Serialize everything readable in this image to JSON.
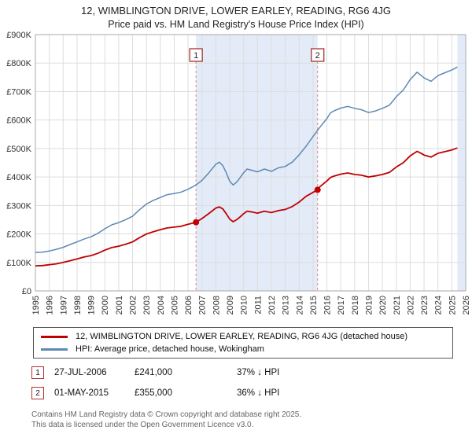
{
  "header": {
    "title": "12, WIMBLINGTON DRIVE, LOWER EARLEY, READING, RG6 4JG",
    "subtitle": "Price paid vs. HM Land Registry's House Price Index (HPI)"
  },
  "chart_data": {
    "type": "line",
    "title": "12, WIMBLINGTON DRIVE, LOWER EARLEY, READING, RG6 4JG",
    "subtitle": "Price paid vs. HM Land Registry's House Price Index (HPI)",
    "x_range": [
      1995,
      2026
    ],
    "y_range_thousands": [
      0,
      900
    ],
    "units": "GBP thousands",
    "grid": true,
    "legend_position": "bottom",
    "x_tick_labels": [
      "1995",
      "1996",
      "1997",
      "1998",
      "1999",
      "2000",
      "2001",
      "2002",
      "2003",
      "2004",
      "2005",
      "2006",
      "2007",
      "2008",
      "2009",
      "2010",
      "2011",
      "2012",
      "2013",
      "2014",
      "2015",
      "2016",
      "2017",
      "2018",
      "2019",
      "2020",
      "2021",
      "2022",
      "2023",
      "2024",
      "2025",
      "2026"
    ],
    "y_tick_labels": [
      "£0",
      "£100K",
      "£200K",
      "£300K",
      "£400K",
      "£500K",
      "£600K",
      "£700K",
      "£800K",
      "£900K"
    ],
    "colors": {
      "property": "#c00000",
      "hpi": "#5d89b4",
      "band": "#e3ebf8",
      "sale_dash": "#dd8888",
      "sale_box_border": "#aa3333",
      "grid": "#dddddd",
      "axis_border": "#aaaaaa"
    },
    "series": [
      {
        "name": "12, WIMBLINGTON DRIVE, LOWER EARLEY, READING, RG6 4JG (detached house)",
        "color_key": "property",
        "points": [
          [
            1995,
            88
          ],
          [
            1995.5,
            89
          ],
          [
            1996,
            92
          ],
          [
            1996.5,
            95
          ],
          [
            1997,
            100
          ],
          [
            1997.5,
            106
          ],
          [
            1998,
            112
          ],
          [
            1998.5,
            119
          ],
          [
            1999,
            124
          ],
          [
            1999.5,
            132
          ],
          [
            2000,
            143
          ],
          [
            2000.5,
            152
          ],
          [
            2001,
            157
          ],
          [
            2001.5,
            164
          ],
          [
            2002,
            172
          ],
          [
            2002.5,
            187
          ],
          [
            2003,
            200
          ],
          [
            2003.5,
            208
          ],
          [
            2004,
            215
          ],
          [
            2004.5,
            221
          ],
          [
            2005,
            224
          ],
          [
            2005.5,
            227
          ],
          [
            2006,
            234
          ],
          [
            2006.57,
            241
          ],
          [
            2007,
            254
          ],
          [
            2007.5,
            272
          ],
          [
            2008,
            291
          ],
          [
            2008.25,
            295
          ],
          [
            2008.5,
            288
          ],
          [
            2008.75,
            271
          ],
          [
            2009,
            252
          ],
          [
            2009.25,
            243
          ],
          [
            2009.5,
            250
          ],
          [
            2009.75,
            260
          ],
          [
            2010,
            271
          ],
          [
            2010.25,
            280
          ],
          [
            2010.5,
            278
          ],
          [
            2011,
            273
          ],
          [
            2011.5,
            280
          ],
          [
            2012,
            275
          ],
          [
            2012.5,
            282
          ],
          [
            2013,
            286
          ],
          [
            2013.5,
            296
          ],
          [
            2014,
            312
          ],
          [
            2014.5,
            332
          ],
          [
            2015,
            346
          ],
          [
            2015.33,
            355
          ],
          [
            2015.5,
            366
          ],
          [
            2016,
            386
          ],
          [
            2016.25,
            398
          ],
          [
            2016.5,
            403
          ],
          [
            2017,
            410
          ],
          [
            2017.5,
            414
          ],
          [
            2018,
            409
          ],
          [
            2018.5,
            406
          ],
          [
            2019,
            400
          ],
          [
            2019.5,
            404
          ],
          [
            2020,
            409
          ],
          [
            2020.5,
            416
          ],
          [
            2021,
            435
          ],
          [
            2021.5,
            450
          ],
          [
            2022,
            474
          ],
          [
            2022.5,
            490
          ],
          [
            2022.75,
            484
          ],
          [
            2023,
            477
          ],
          [
            2023.5,
            470
          ],
          [
            2024,
            483
          ],
          [
            2024.5,
            489
          ],
          [
            2025,
            495
          ],
          [
            2025.4,
            502
          ]
        ]
      },
      {
        "name": "HPI: Average price, detached house, Wokingham",
        "color_key": "hpi",
        "points": [
          [
            1995,
            135
          ],
          [
            1995.5,
            136
          ],
          [
            1996,
            140
          ],
          [
            1996.5,
            146
          ],
          [
            1997,
            153
          ],
          [
            1997.5,
            163
          ],
          [
            1998,
            172
          ],
          [
            1998.5,
            182
          ],
          [
            1999,
            190
          ],
          [
            1999.5,
            202
          ],
          [
            2000,
            218
          ],
          [
            2000.5,
            232
          ],
          [
            2001,
            240
          ],
          [
            2001.5,
            250
          ],
          [
            2002,
            262
          ],
          [
            2002.5,
            285
          ],
          [
            2003,
            305
          ],
          [
            2003.5,
            318
          ],
          [
            2004,
            328
          ],
          [
            2004.5,
            338
          ],
          [
            2005,
            342
          ],
          [
            2005.5,
            347
          ],
          [
            2006,
            357
          ],
          [
            2006.5,
            370
          ],
          [
            2007,
            388
          ],
          [
            2007.5,
            415
          ],
          [
            2008,
            445
          ],
          [
            2008.25,
            452
          ],
          [
            2008.5,
            440
          ],
          [
            2008.75,
            415
          ],
          [
            2009,
            385
          ],
          [
            2009.25,
            372
          ],
          [
            2009.5,
            382
          ],
          [
            2009.75,
            398
          ],
          [
            2010,
            415
          ],
          [
            2010.25,
            428
          ],
          [
            2010.5,
            425
          ],
          [
            2011,
            418
          ],
          [
            2011.5,
            428
          ],
          [
            2012,
            420
          ],
          [
            2012.5,
            432
          ],
          [
            2013,
            437
          ],
          [
            2013.5,
            452
          ],
          [
            2014,
            478
          ],
          [
            2014.5,
            508
          ],
          [
            2015,
            542
          ],
          [
            2015.5,
            575
          ],
          [
            2016,
            605
          ],
          [
            2016.25,
            625
          ],
          [
            2016.5,
            632
          ],
          [
            2017,
            642
          ],
          [
            2017.5,
            648
          ],
          [
            2018,
            641
          ],
          [
            2018.5,
            636
          ],
          [
            2019,
            626
          ],
          [
            2019.5,
            632
          ],
          [
            2020,
            641
          ],
          [
            2020.5,
            652
          ],
          [
            2021,
            682
          ],
          [
            2021.5,
            705
          ],
          [
            2022,
            742
          ],
          [
            2022.5,
            768
          ],
          [
            2022.75,
            758
          ],
          [
            2023,
            748
          ],
          [
            2023.5,
            736
          ],
          [
            2024,
            756
          ],
          [
            2024.5,
            766
          ],
          [
            2025,
            776
          ],
          [
            2025.4,
            786
          ]
        ]
      }
    ],
    "sales": [
      {
        "n": 1,
        "x": 2006.57,
        "y": 241
      },
      {
        "n": 2,
        "x": 2015.33,
        "y": 355
      }
    ],
    "shaded_regions": [
      [
        2006.57,
        2015.33
      ],
      [
        2025.4,
        2026
      ]
    ]
  },
  "annotations": [
    {
      "n": "1",
      "date": "27-JUL-2006",
      "price": "£241,000",
      "delta": "37% ↓ HPI"
    },
    {
      "n": "2",
      "date": "01-MAY-2015",
      "price": "£355,000",
      "delta": "36% ↓ HPI"
    }
  ],
  "footer": {
    "line1": "Contains HM Land Registry data © Crown copyright and database right 2025.",
    "line2": "This data is licensed under the Open Government Licence v3.0."
  }
}
